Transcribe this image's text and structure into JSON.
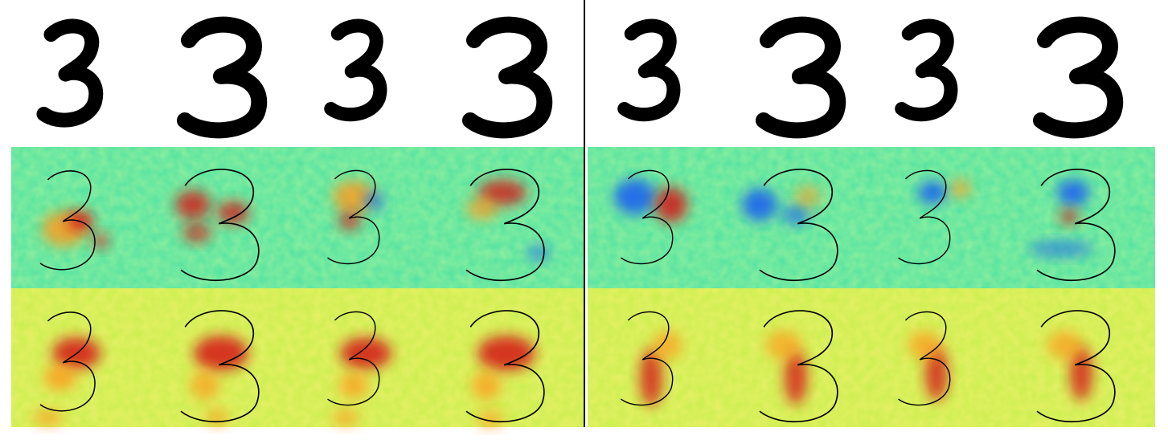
{
  "figure": {
    "digit_label": "3",
    "groups": 2,
    "digits_per_group": 4,
    "rows": [
      "input-digits",
      "relevance-map-a",
      "relevance-map-b"
    ],
    "colormap": "jet",
    "colors": {
      "background": "#ffffff",
      "digit_ink": "#000000",
      "divider": "#000000",
      "map_a_base": "#4fe2a0",
      "map_b_base": "#c9ee4e",
      "hot": "#d41414",
      "warm": "#ff9a1c",
      "cool": "#1e63ee",
      "outline": "#000000"
    }
  }
}
